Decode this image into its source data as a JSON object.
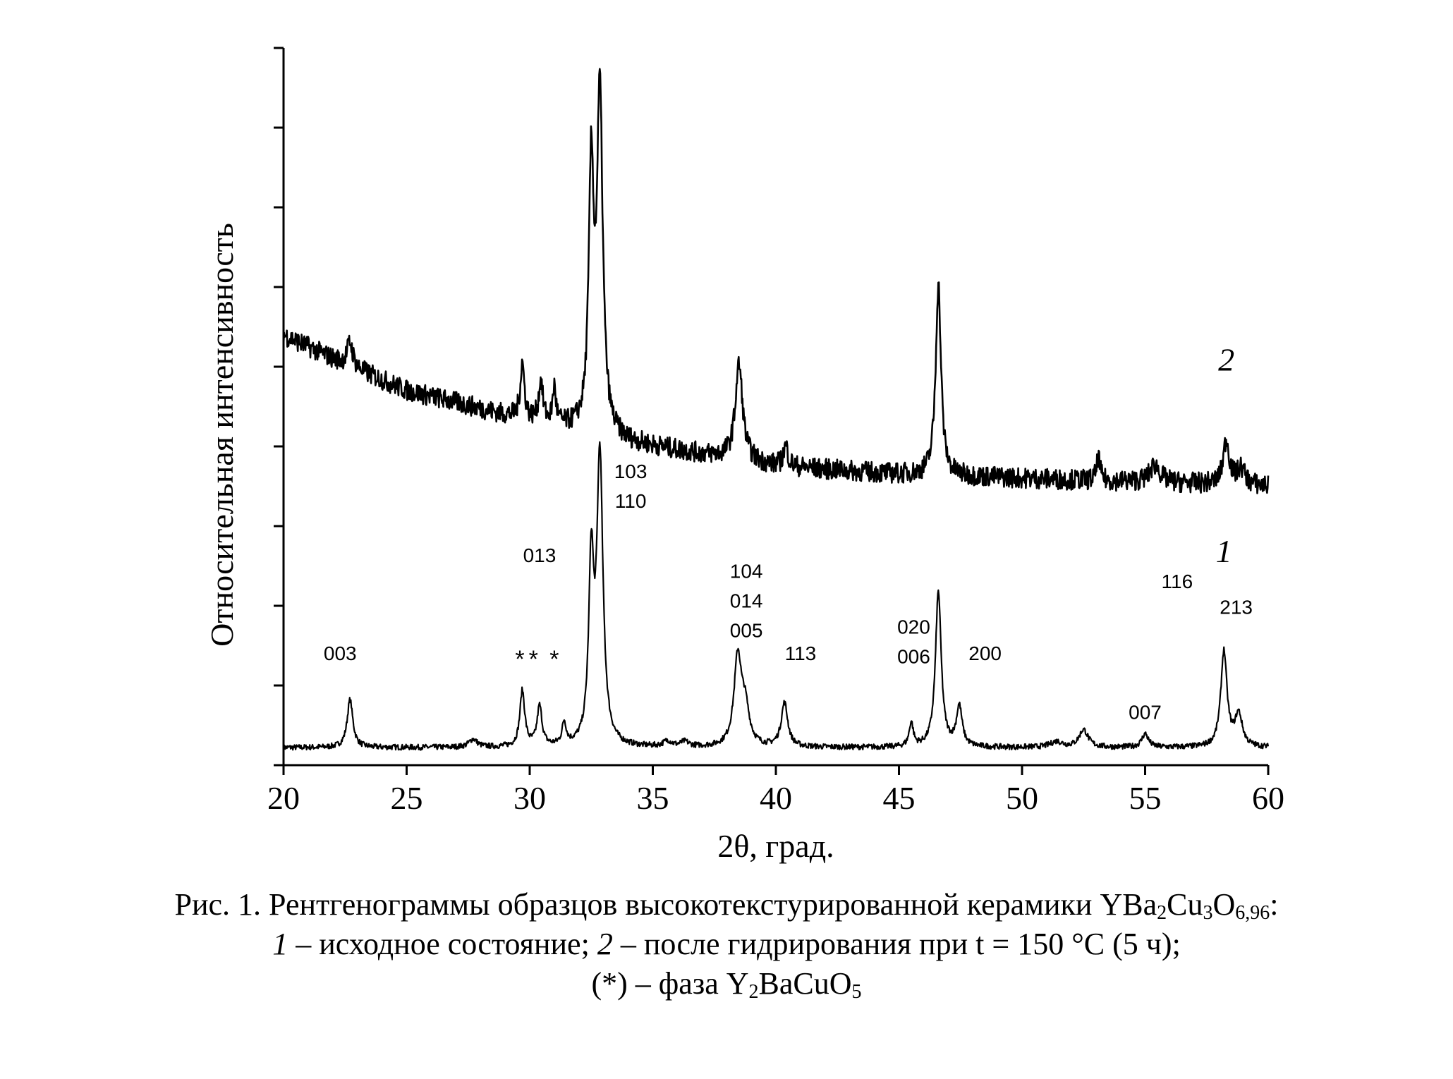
{
  "chart_data": {
    "type": "line",
    "xlabel": "2θ, град.",
    "ylabel": "Относительная интенсивность",
    "xlim": [
      20,
      60
    ],
    "xticks": [
      "20",
      "25",
      "30",
      "35",
      "40",
      "45",
      "50",
      "55",
      "60"
    ],
    "ylim": [
      0,
      9
    ],
    "y_tick_labels_shown": false,
    "grid": false,
    "series": [
      {
        "name": "1",
        "baseline": [
          [
            20,
            0.22
          ],
          [
            60,
            0.22
          ]
        ],
        "peaks": [
          {
            "x": 22.7,
            "h": 0.6,
            "w": 0.14
          },
          {
            "x": 27.7,
            "h": 0.1,
            "w": 0.2
          },
          {
            "x": 29.7,
            "h": 0.7,
            "w": 0.12
          },
          {
            "x": 30.4,
            "h": 0.5,
            "w": 0.12
          },
          {
            "x": 31.4,
            "h": 0.28,
            "w": 0.1
          },
          {
            "x": 32.5,
            "h": 2.2,
            "w": 0.12
          },
          {
            "x": 32.85,
            "h": 3.6,
            "w": 0.15
          },
          {
            "x": 35.6,
            "h": 0.07,
            "w": 0.2
          },
          {
            "x": 36.3,
            "h": 0.06,
            "w": 0.2
          },
          {
            "x": 38.45,
            "h": 1.1,
            "w": 0.18
          },
          {
            "x": 38.75,
            "h": 0.45,
            "w": 0.2
          },
          {
            "x": 40.35,
            "h": 0.55,
            "w": 0.16
          },
          {
            "x": 45.5,
            "h": 0.3,
            "w": 0.1
          },
          {
            "x": 46.6,
            "h": 1.95,
            "w": 0.14
          },
          {
            "x": 47.45,
            "h": 0.5,
            "w": 0.14
          },
          {
            "x": 51.4,
            "h": 0.07,
            "w": 0.3
          },
          {
            "x": 52.5,
            "h": 0.22,
            "w": 0.22
          },
          {
            "x": 55.0,
            "h": 0.17,
            "w": 0.16
          },
          {
            "x": 58.2,
            "h": 1.2,
            "w": 0.15
          },
          {
            "x": 58.8,
            "h": 0.4,
            "w": 0.18
          }
        ]
      },
      {
        "name": "2",
        "baseline": [
          [
            20,
            5.4
          ],
          [
            22,
            5.1
          ],
          [
            25,
            4.7
          ],
          [
            27,
            4.55
          ],
          [
            29.5,
            4.35
          ],
          [
            32,
            4.2
          ],
          [
            34,
            4.05
          ],
          [
            37,
            3.9
          ],
          [
            40,
            3.75
          ],
          [
            45,
            3.65
          ],
          [
            50,
            3.6
          ],
          [
            55,
            3.55
          ],
          [
            60,
            3.5
          ]
        ],
        "peaks": [
          {
            "x": 22.7,
            "h": 0.3,
            "w": 0.14
          },
          {
            "x": 29.7,
            "h": 0.7,
            "w": 0.1
          },
          {
            "x": 30.45,
            "h": 0.5,
            "w": 0.1
          },
          {
            "x": 31.0,
            "h": 0.45,
            "w": 0.08
          },
          {
            "x": 32.5,
            "h": 3.2,
            "w": 0.12
          },
          {
            "x": 32.85,
            "h": 4.2,
            "w": 0.14
          },
          {
            "x": 38.5,
            "h": 1.2,
            "w": 0.18
          },
          {
            "x": 40.4,
            "h": 0.25,
            "w": 0.12
          },
          {
            "x": 46.6,
            "h": 2.4,
            "w": 0.13
          },
          {
            "x": 53.1,
            "h": 0.3,
            "w": 0.08
          },
          {
            "x": 55.4,
            "h": 0.22,
            "w": 0.25
          },
          {
            "x": 58.3,
            "h": 0.55,
            "w": 0.15
          },
          {
            "x": 58.9,
            "h": 0.2,
            "w": 0.2
          }
        ]
      }
    ],
    "series_labels": [
      {
        "text": "2",
        "x": 58.3,
        "y": 4.95
      },
      {
        "text": "1",
        "x": 58.2,
        "y": 2.55
      }
    ],
    "annotations": [
      {
        "lines": [
          "003"
        ],
        "x": 22.3,
        "y": 1.32
      },
      {
        "lines": [
          "*",
          "*",
          "*"
        ],
        "xs": [
          29.6,
          30.15,
          31.0
        ],
        "y": 1.32
      },
      {
        "lines": [
          "013"
        ],
        "x": 30.4,
        "y": 2.55
      },
      {
        "lines": [
          "103",
          "110"
        ],
        "x": 34.1,
        "y": 3.6
      },
      {
        "lines": [
          "104",
          "014",
          "005"
        ],
        "x": 38.8,
        "y": 2.35
      },
      {
        "lines": [
          "113"
        ],
        "x": 41.0,
        "y": 1.32
      },
      {
        "lines": [
          "020",
          "006"
        ],
        "x": 45.6,
        "y": 1.65
      },
      {
        "lines": [
          "200"
        ],
        "x": 48.5,
        "y": 1.32
      },
      {
        "lines": [
          "007"
        ],
        "x": 55.0,
        "y": 0.58
      },
      {
        "lines": [
          "116"
        ],
        "x": 56.3,
        "y": 2.22
      },
      {
        "lines": [
          "213"
        ],
        "x": 58.7,
        "y": 1.9
      }
    ]
  },
  "caption": {
    "line1_prefix": "Рис. 1. Рентгенограммы образцов высокотекстурированной керамики YBa",
    "line1_sub1": "2",
    "line1_mid1": "Cu",
    "line1_sub2": "3",
    "line1_mid2": "O",
    "line1_sub3": "6,96",
    "line1_suffix": ":",
    "line2_num1": "1",
    "line2_text1": " – исходное состояние; ",
    "line2_num2": "2",
    "line2_text2": " – после гидрирования при t = 150 °C (5 ч);",
    "line3_prefix": "(*) – фаза Y",
    "line3_sub1": "2",
    "line3_suffix": "BaCuO",
    "line3_sub2": "5"
  }
}
